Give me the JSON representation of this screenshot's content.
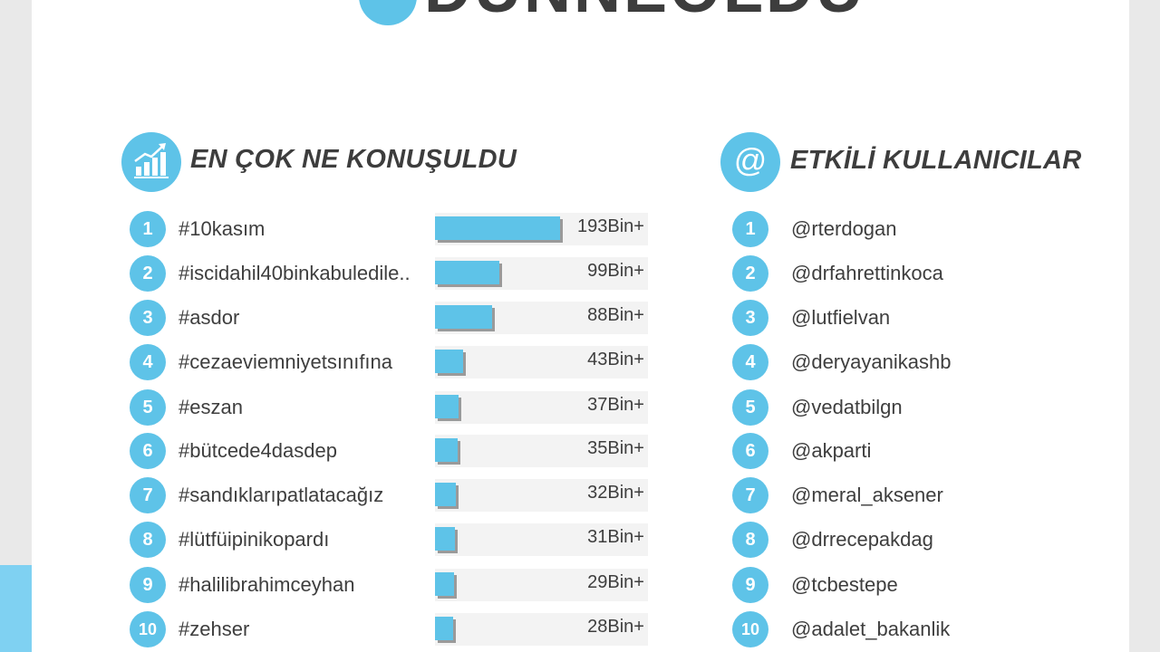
{
  "header": {
    "badge_symbol": "#",
    "title": "DÜNNEOLDU"
  },
  "left_section": {
    "icon": "trending-chart-icon",
    "title": "EN ÇOK NE KONUŞULDU",
    "max_value": 193,
    "items": [
      {
        "rank": "1",
        "tag": "#10kasım",
        "count": "193Bin+",
        "value": 193
      },
      {
        "rank": "2",
        "tag": "#iscidahil40binkabuledile..",
        "count": "99Bin+",
        "value": 99
      },
      {
        "rank": "3",
        "tag": "#asdor",
        "count": "88Bin+",
        "value": 88
      },
      {
        "rank": "4",
        "tag": "#cezaeviemniyetsınıfına",
        "count": "43Bin+",
        "value": 43
      },
      {
        "rank": "5",
        "tag": "#eszan",
        "count": "37Bin+",
        "value": 37
      },
      {
        "rank": "6",
        "tag": "#bütcede4dasdep",
        "count": "35Bin+",
        "value": 35
      },
      {
        "rank": "7",
        "tag": "#sandıklarıpatlatacağız",
        "count": "32Bin+",
        "value": 32
      },
      {
        "rank": "8",
        "tag": "#lütfüipinikopardı",
        "count": "31Bin+",
        "value": 31
      },
      {
        "rank": "9",
        "tag": "#halilibrahimceyhan",
        "count": "29Bin+",
        "value": 29
      },
      {
        "rank": "10",
        "tag": "#zehser",
        "count": "28Bin+",
        "value": 28
      }
    ]
  },
  "right_section": {
    "icon_symbol": "@",
    "title": "ETKİLİ KULLANICILAR",
    "items": [
      {
        "rank": "1",
        "user": "@rterdogan"
      },
      {
        "rank": "2",
        "user": "@drfahrettinkoca"
      },
      {
        "rank": "3",
        "user": "@lutfielvan"
      },
      {
        "rank": "4",
        "user": "@deryayanikashb"
      },
      {
        "rank": "5",
        "user": "@vedatbilgn"
      },
      {
        "rank": "6",
        "user": "@akparti"
      },
      {
        "rank": "7",
        "user": "@meral_aksener"
      },
      {
        "rank": "8",
        "user": "@drrecepakdag"
      },
      {
        "rank": "9",
        "user": "@tcbestepe"
      },
      {
        "rank": "10",
        "user": "@adalet_bakanlik"
      }
    ]
  },
  "colors": {
    "accent": "#5ec3e8",
    "text": "#3e3e3e",
    "bar_shadow": "#9a9a9a",
    "page_bg": "#e9e9e9"
  }
}
